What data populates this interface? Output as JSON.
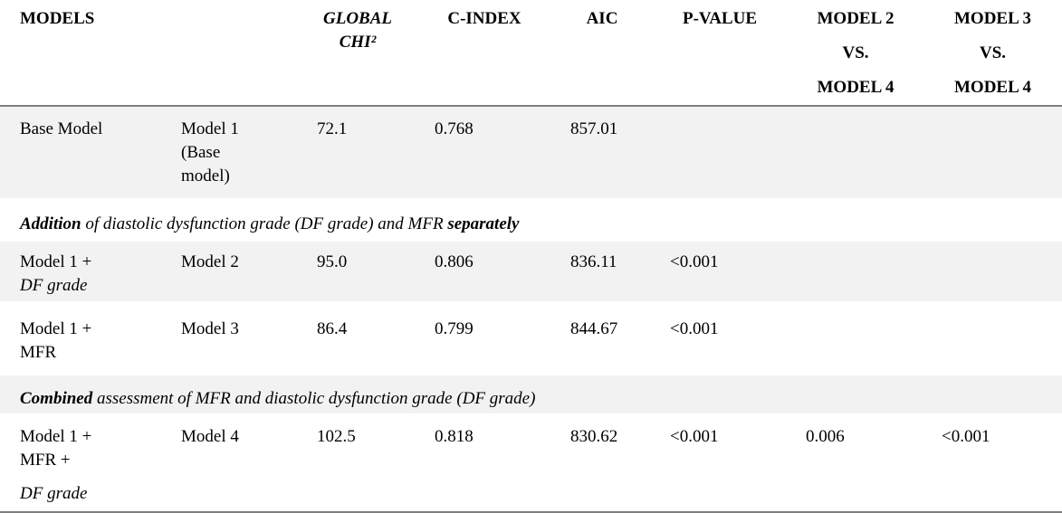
{
  "page": {
    "background": "#ffffff",
    "row_shade_color": "#f2f2f2",
    "rule_color": "#7f7f7f",
    "text_color": "#000000"
  },
  "header": {
    "models": "MODELS",
    "global_chi2_line1": "GLOBAL",
    "global_chi2_line2": "CHI²",
    "c_index": "C-INDEX",
    "aic": "AIC",
    "p_value": "P-VALUE",
    "m2_vs_m4_lines": [
      "MODEL 2",
      "VS.",
      "MODEL 4"
    ],
    "m3_vs_m4_lines": [
      "MODEL 3",
      "VS.",
      "MODEL 4"
    ]
  },
  "rows": {
    "base_model": {
      "label": "Base Model",
      "name_line1": "Model 1",
      "name_line2": "(Base",
      "name_line3": "model)",
      "global_chi2": "72.1",
      "c_index": "0.768",
      "aic": "857.01"
    },
    "section_addition": {
      "lead": "Addition",
      "body": " of diastolic dysfunction grade (DF grade) and MFR ",
      "tail": "separately"
    },
    "model2": {
      "label_line1": "Model 1 +",
      "label_line2": "DF grade",
      "name": "Model 2",
      "global_chi2": "95.0",
      "c_index": "0.806",
      "aic": "836.11",
      "p_value": "<0.001"
    },
    "model3": {
      "label_line1": "Model 1 +",
      "label_line2": "MFR",
      "name": "Model 3",
      "global_chi2": "86.4",
      "c_index": "0.799",
      "aic": "844.67",
      "p_value": "<0.001"
    },
    "section_combined": {
      "lead": "Combined",
      "body": " assessment of MFR and diastolic dysfunction grade (DF grade)"
    },
    "model4": {
      "label_line1": "Model 1 +",
      "label_line2": "MFR +",
      "label_line3": "DF grade",
      "name": "Model 4",
      "global_chi2": "102.5",
      "c_index": "0.818",
      "aic": "830.62",
      "p_value": "<0.001",
      "m2_vs_m4": "0.006",
      "m3_vs_m4": "<0.001"
    }
  }
}
